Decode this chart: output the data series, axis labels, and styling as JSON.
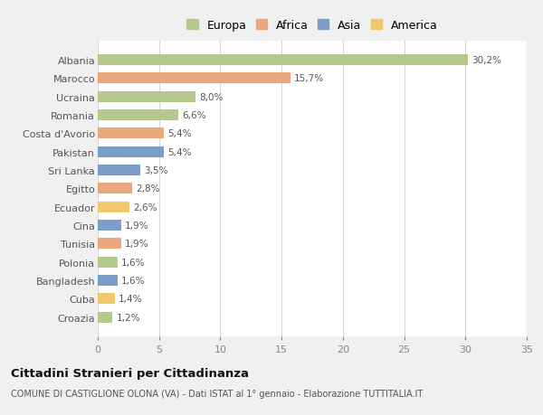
{
  "countries": [
    "Albania",
    "Marocco",
    "Ucraina",
    "Romania",
    "Costa d'Avorio",
    "Pakistan",
    "Sri Lanka",
    "Egitto",
    "Ecuador",
    "Cina",
    "Tunisia",
    "Polonia",
    "Bangladesh",
    "Cuba",
    "Croazia"
  ],
  "values": [
    30.2,
    15.7,
    8.0,
    6.6,
    5.4,
    5.4,
    3.5,
    2.8,
    2.6,
    1.9,
    1.9,
    1.6,
    1.6,
    1.4,
    1.2
  ],
  "labels": [
    "30,2%",
    "15,7%",
    "8,0%",
    "6,6%",
    "5,4%",
    "5,4%",
    "3,5%",
    "2,8%",
    "2,6%",
    "1,9%",
    "1,9%",
    "1,6%",
    "1,6%",
    "1,4%",
    "1,2%"
  ],
  "colors": [
    "#b5c98e",
    "#e8a87c",
    "#b5c98e",
    "#b5c98e",
    "#e8a87c",
    "#7b9ec9",
    "#7b9ec9",
    "#e8a87c",
    "#f0c96e",
    "#7b9ec9",
    "#e8a87c",
    "#b5c98e",
    "#7b9ec9",
    "#f0c96e",
    "#b5c98e"
  ],
  "legend_labels": [
    "Europa",
    "Africa",
    "Asia",
    "America"
  ],
  "legend_colors": [
    "#b5c98e",
    "#e8a87c",
    "#7b9ec9",
    "#f0c96e"
  ],
  "title": "Cittadini Stranieri per Cittadinanza",
  "subtitle": "COMUNE DI CASTIGLIONE OLONA (VA) - Dati ISTAT al 1° gennaio - Elaborazione TUTTITALIA.IT",
  "xlim": [
    0,
    35
  ],
  "xticks": [
    0,
    5,
    10,
    15,
    20,
    25,
    30,
    35
  ],
  "background_color": "#f0f0f0",
  "bar_background": "#ffffff"
}
